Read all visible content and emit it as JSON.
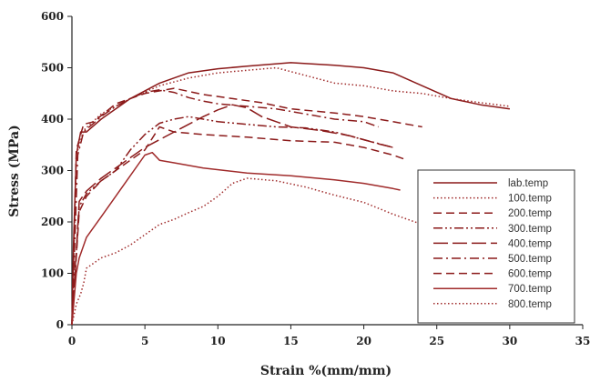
{
  "chart_data": {
    "type": "line",
    "title": "",
    "xlabel": "Strain %(mm/mm)",
    "ylabel": "Stress (MPa)",
    "xlim": [
      0,
      35
    ],
    "ylim": [
      0,
      600
    ],
    "xticks": [
      0,
      5,
      10,
      15,
      20,
      25,
      30,
      35
    ],
    "yticks": [
      0,
      100,
      200,
      300,
      400,
      500,
      600
    ],
    "grid": false,
    "legend_position": "right",
    "series": [
      {
        "name": "lab.temp",
        "color": "#8b1a1a",
        "dash": "solid",
        "points": [
          [
            0,
            0
          ],
          [
            0.1,
            150
          ],
          [
            0.3,
            330
          ],
          [
            0.6,
            375
          ],
          [
            1,
            375
          ],
          [
            2,
            400
          ],
          [
            4,
            440
          ],
          [
            6,
            470
          ],
          [
            8,
            490
          ],
          [
            10,
            498
          ],
          [
            12,
            503
          ],
          [
            15,
            510
          ],
          [
            18,
            505
          ],
          [
            20,
            500
          ],
          [
            22,
            490
          ],
          [
            24,
            465
          ],
          [
            26,
            440
          ],
          [
            28,
            428
          ],
          [
            30,
            420
          ]
        ]
      },
      {
        "name": "100.temp",
        "color": "#a02b2b",
        "dash": "dotted",
        "points": [
          [
            0,
            0
          ],
          [
            0.3,
            330
          ],
          [
            0.8,
            378
          ],
          [
            2,
            410
          ],
          [
            4,
            440
          ],
          [
            6,
            465
          ],
          [
            8,
            480
          ],
          [
            10,
            490
          ],
          [
            12,
            495
          ],
          [
            14,
            500
          ],
          [
            16,
            485
          ],
          [
            18,
            470
          ],
          [
            20,
            465
          ],
          [
            22,
            455
          ],
          [
            24,
            450
          ],
          [
            26,
            440
          ],
          [
            28,
            432
          ],
          [
            30,
            425
          ]
        ]
      },
      {
        "name": "200.temp",
        "color": "#8b1a1a",
        "dash": "dash",
        "points": [
          [
            0,
            0
          ],
          [
            0.3,
            340
          ],
          [
            0.8,
            390
          ],
          [
            1.5,
            395
          ],
          [
            3,
            430
          ],
          [
            5,
            450
          ],
          [
            7,
            460
          ],
          [
            9,
            448
          ],
          [
            11,
            440
          ],
          [
            13,
            432
          ],
          [
            15,
            420
          ],
          [
            18,
            412
          ],
          [
            20,
            405
          ],
          [
            22,
            395
          ],
          [
            24,
            385
          ]
        ]
      },
      {
        "name": "300.temp",
        "color": "#8b1a1a",
        "dash": "dashdotdot",
        "points": [
          [
            0,
            0
          ],
          [
            0.5,
            230
          ],
          [
            1,
            255
          ],
          [
            2,
            280
          ],
          [
            3,
            300
          ],
          [
            4,
            340
          ],
          [
            5,
            370
          ],
          [
            6,
            392
          ],
          [
            7,
            400
          ],
          [
            8,
            405
          ],
          [
            9,
            400
          ],
          [
            10,
            395
          ],
          [
            12,
            390
          ],
          [
            14,
            385
          ],
          [
            16,
            383
          ],
          [
            18,
            375
          ],
          [
            20,
            360
          ],
          [
            22,
            345
          ]
        ]
      },
      {
        "name": "400.temp",
        "color": "#8b1a1a",
        "dash": "longdash",
        "points": [
          [
            0,
            0
          ],
          [
            0.5,
            240
          ],
          [
            1,
            260
          ],
          [
            2,
            285
          ],
          [
            3,
            305
          ],
          [
            4,
            325
          ],
          [
            5,
            345
          ],
          [
            6,
            360
          ],
          [
            7,
            375
          ],
          [
            8,
            390
          ],
          [
            9,
            405
          ],
          [
            10,
            418
          ],
          [
            11,
            428
          ],
          [
            12,
            422
          ],
          [
            13,
            405
          ],
          [
            14,
            395
          ],
          [
            15,
            385
          ],
          [
            17,
            378
          ],
          [
            19,
            368
          ],
          [
            20,
            360
          ],
          [
            21,
            352
          ],
          [
            22,
            345
          ]
        ]
      },
      {
        "name": "500.temp",
        "color": "#8b1a1a",
        "dash": "dashdot",
        "points": [
          [
            0,
            0
          ],
          [
            0.4,
            330
          ],
          [
            0.8,
            375
          ],
          [
            2,
            405
          ],
          [
            3,
            425
          ],
          [
            4,
            440
          ],
          [
            5,
            452
          ],
          [
            6,
            457
          ],
          [
            7,
            452
          ],
          [
            8,
            442
          ],
          [
            9,
            435
          ],
          [
            10,
            430
          ],
          [
            12,
            425
          ],
          [
            14,
            420
          ],
          [
            16,
            410
          ],
          [
            18,
            400
          ],
          [
            20,
            395
          ],
          [
            21,
            385
          ]
        ]
      },
      {
        "name": "600.temp",
        "color": "#8b1a1a",
        "dash": "dash",
        "points": [
          [
            0,
            0
          ],
          [
            0.5,
            220
          ],
          [
            1,
            250
          ],
          [
            2,
            280
          ],
          [
            3,
            300
          ],
          [
            4,
            320
          ],
          [
            5,
            340
          ],
          [
            6,
            385
          ],
          [
            7,
            375
          ],
          [
            9,
            370
          ],
          [
            12,
            365
          ],
          [
            15,
            358
          ],
          [
            18,
            355
          ],
          [
            20,
            345
          ],
          [
            22,
            330
          ],
          [
            23,
            320
          ]
        ]
      },
      {
        "name": "700.temp",
        "color": "#a02b2b",
        "dash": "solid",
        "points": [
          [
            0,
            0
          ],
          [
            0.3,
            100
          ],
          [
            0.5,
            130
          ],
          [
            1,
            170
          ],
          [
            2,
            210
          ],
          [
            3,
            250
          ],
          [
            4,
            290
          ],
          [
            5,
            330
          ],
          [
            5.5,
            335
          ],
          [
            6,
            320
          ],
          [
            7,
            315
          ],
          [
            9,
            305
          ],
          [
            12,
            295
          ],
          [
            15,
            290
          ],
          [
            18,
            282
          ],
          [
            20,
            275
          ],
          [
            22,
            265
          ],
          [
            22.5,
            262
          ]
        ]
      },
      {
        "name": "800.temp",
        "color": "#a02b2b",
        "dash": "dotted",
        "points": [
          [
            0,
            0
          ],
          [
            0.3,
            40
          ],
          [
            0.6,
            60
          ],
          [
            0.8,
            80
          ],
          [
            1,
            110
          ],
          [
            2,
            130
          ],
          [
            3,
            140
          ],
          [
            4,
            155
          ],
          [
            5,
            175
          ],
          [
            6,
            195
          ],
          [
            7,
            205
          ],
          [
            8,
            218
          ],
          [
            9,
            230
          ],
          [
            10,
            250
          ],
          [
            11,
            275
          ],
          [
            12,
            285
          ],
          [
            14,
            280
          ],
          [
            16,
            268
          ],
          [
            18,
            252
          ],
          [
            20,
            238
          ],
          [
            22,
            215
          ],
          [
            23,
            205
          ],
          [
            24,
            195
          ]
        ]
      }
    ]
  }
}
